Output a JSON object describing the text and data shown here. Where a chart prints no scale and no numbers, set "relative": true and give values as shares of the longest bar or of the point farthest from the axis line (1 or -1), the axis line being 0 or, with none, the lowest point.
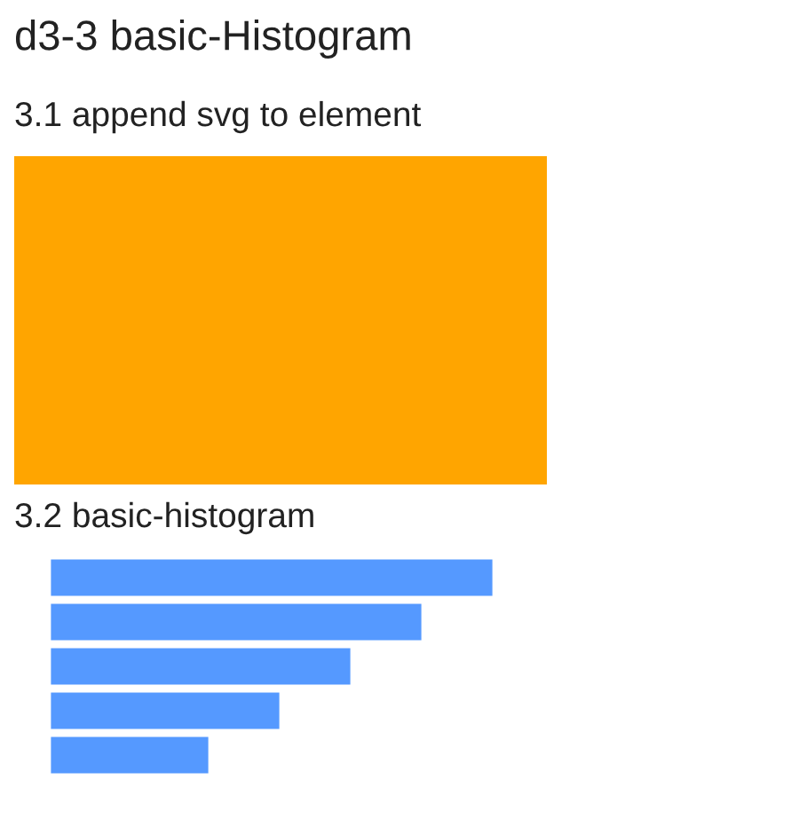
{
  "chart_data": {
    "type": "bar",
    "orientation": "horizontal",
    "relative": true,
    "title": "d3-3 basic-Histogram",
    "subtitle": "3.2 basic-histogram",
    "annotations": [
      "3.1 append svg to element"
    ],
    "categories": [
      null,
      null,
      null,
      null,
      null
    ],
    "values": [
      1,
      0.84,
      0.68,
      0.52,
      0.36
    ],
    "color": "#5599ff"
  }
}
